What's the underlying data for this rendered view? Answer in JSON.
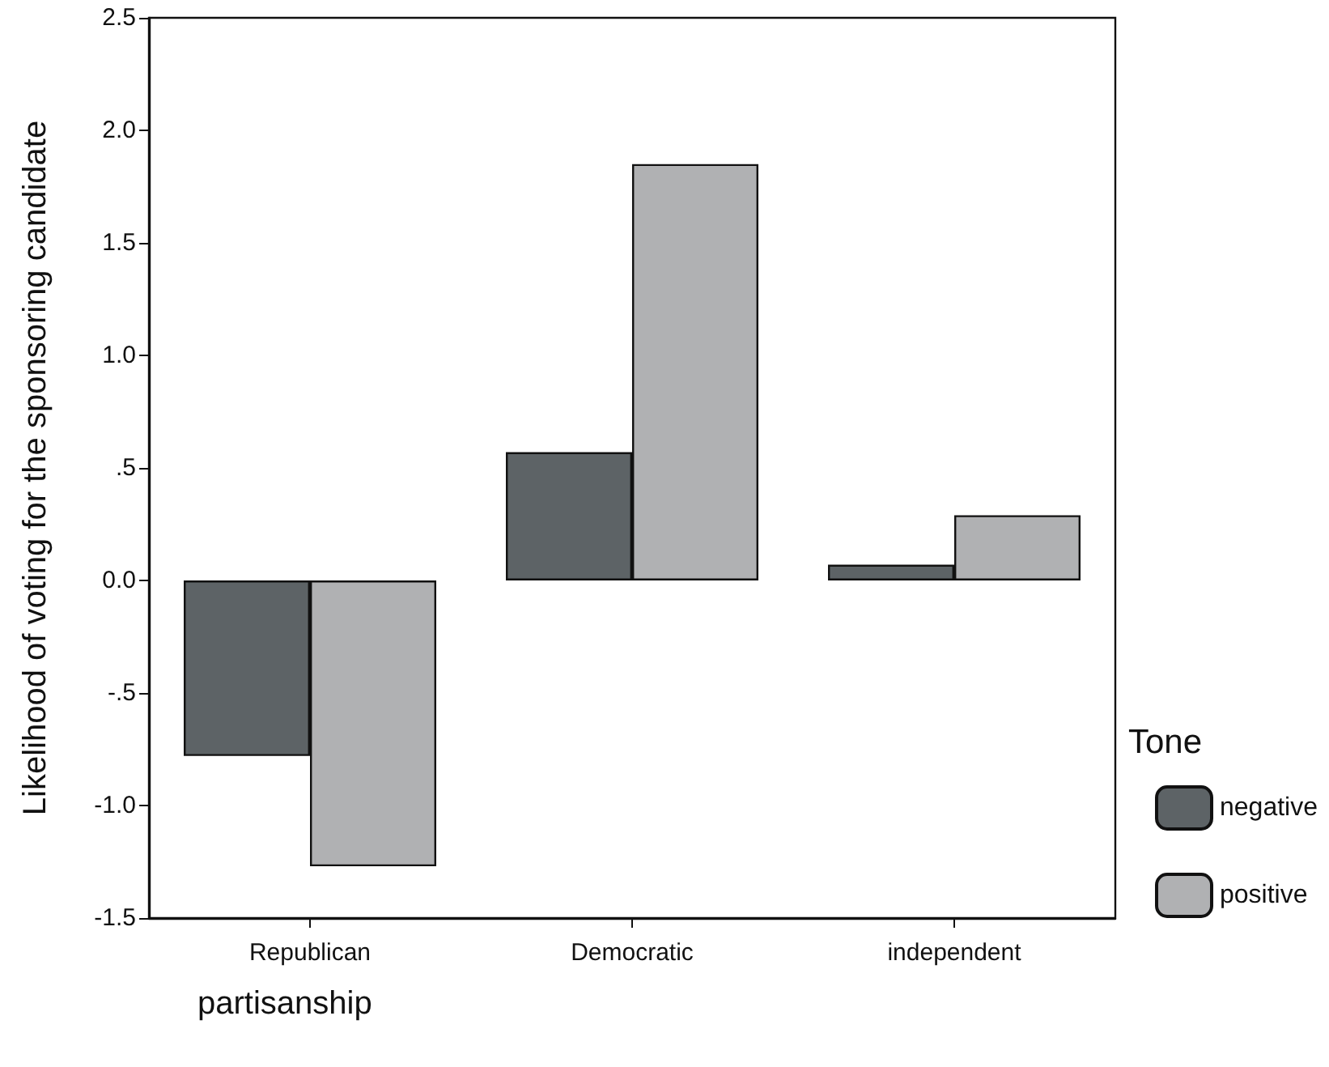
{
  "chart_data": {
    "type": "bar",
    "xlabel": "partisanship",
    "ylabel": "Likelihood of voting for the sponsoring candidate",
    "legend_title": "Tone",
    "categories": [
      "Republican",
      "Democratic",
      "independent"
    ],
    "series": [
      {
        "name": "negative",
        "color": "#5d6366",
        "values": [
          -0.78,
          0.57,
          0.07
        ]
      },
      {
        "name": "positive",
        "color": "#b0b1b3",
        "values": [
          -1.27,
          1.85,
          0.29
        ]
      }
    ],
    "ylim": [
      -1.5,
      2.5
    ],
    "yticks": [
      {
        "value": -1.5,
        "label": "-1.5"
      },
      {
        "value": -1,
        "label": "-1.0"
      },
      {
        "value": -0.5,
        "label": "-.5"
      },
      {
        "value": 0,
        "label": "0.0"
      },
      {
        "value": 0.5,
        "label": ".5"
      },
      {
        "value": 1,
        "label": "1.0"
      },
      {
        "value": 1.5,
        "label": "1.5"
      },
      {
        "value": 2,
        "label": "2.0"
      },
      {
        "value": 2.5,
        "label": "2.5"
      }
    ],
    "grid": false,
    "legend": "bottom right"
  }
}
